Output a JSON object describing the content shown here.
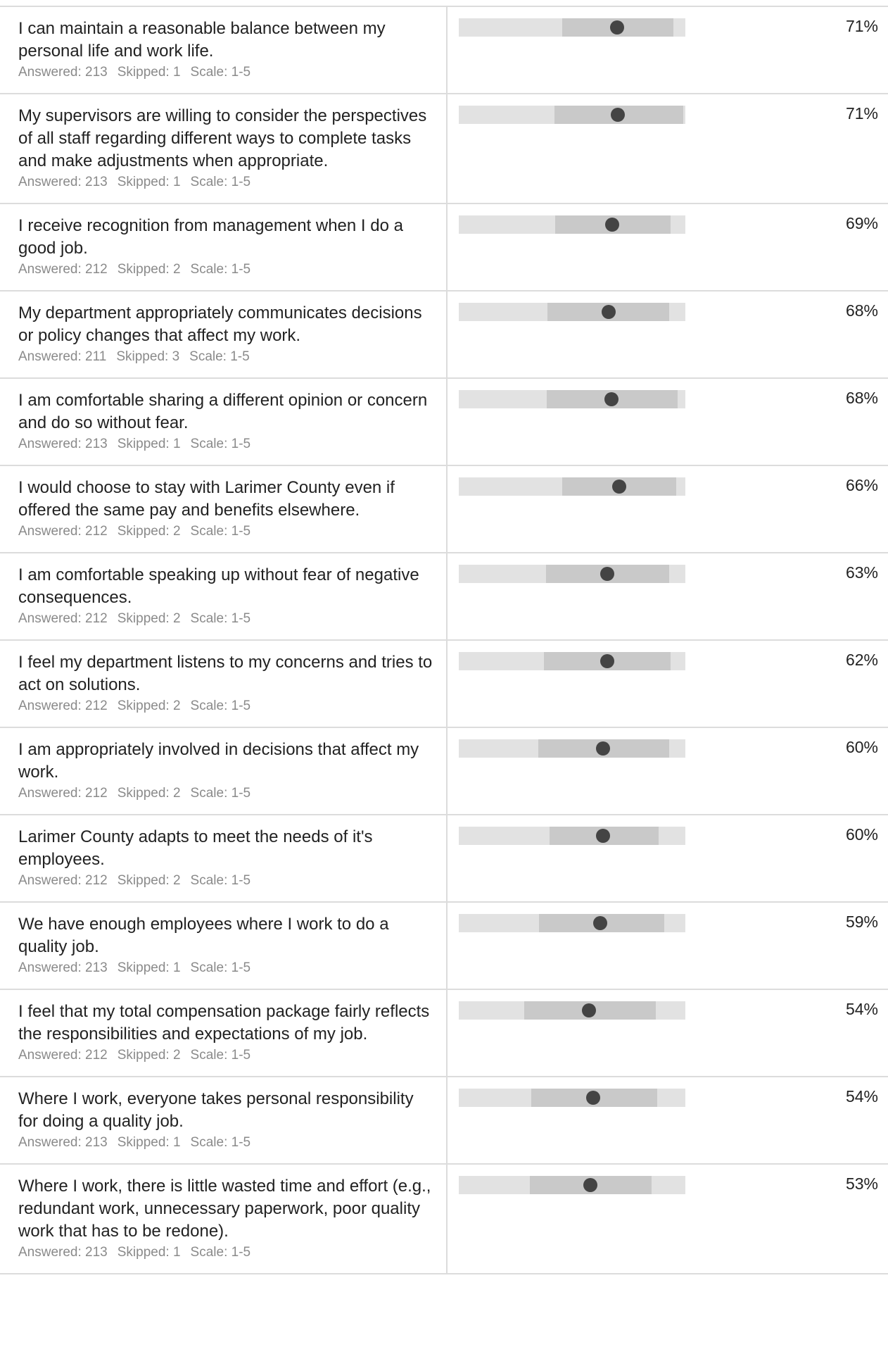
{
  "chart_data": {
    "type": "table",
    "scale_min": 1,
    "scale_max": 5,
    "rows": [
      {
        "question": "I can maintain a reasonable balance between my personal life and work life.",
        "answered": "Answered: 213",
        "skipped": "Skipped: 1",
        "scale": "Scale: 1-5",
        "range_low": 2.83,
        "range_high": 4.79,
        "mean": 3.79,
        "percent": "71%"
      },
      {
        "question": "My supervisors are willing to consider the perspectives of all staff regarding different ways to complete tasks and make adjustments when appropriate.",
        "answered": "Answered: 213",
        "skipped": "Skipped: 1",
        "scale": "Scale: 1-5",
        "range_low": 2.69,
        "range_high": 4.96,
        "mean": 3.81,
        "percent": "71%"
      },
      {
        "question": "I receive recognition from management when I do a good job.",
        "answered": "Answered: 212",
        "skipped": "Skipped: 2",
        "scale": "Scale: 1-5",
        "range_low": 2.7,
        "range_high": 4.74,
        "mean": 3.71,
        "percent": "69%"
      },
      {
        "question": "My department appropriately communicates decisions or policy changes that affect my work.",
        "answered": "Answered: 211",
        "skipped": "Skipped: 3",
        "scale": "Scale: 1-5",
        "range_low": 2.57,
        "range_high": 4.71,
        "mean": 3.64,
        "percent": "68%"
      },
      {
        "question": "I am comfortable sharing a different opinion or concern and do so without fear.",
        "answered": "Answered: 213",
        "skipped": "Skipped: 1",
        "scale": "Scale: 1-5",
        "range_low": 2.55,
        "range_high": 4.86,
        "mean": 3.7,
        "percent": "68%"
      },
      {
        "question": "I would choose to stay with Larimer County even if offered the same pay and benefits elsewhere.",
        "answered": "Answered: 212",
        "skipped": "Skipped: 2",
        "scale": "Scale: 1-5",
        "range_low": 2.83,
        "range_high": 4.84,
        "mean": 3.83,
        "percent": "66%"
      },
      {
        "question": "I am comfortable speaking up without fear of negative consequences.",
        "answered": "Answered: 212",
        "skipped": "Skipped: 2",
        "scale": "Scale: 1-5",
        "range_low": 2.54,
        "range_high": 4.71,
        "mean": 3.62,
        "percent": "63%"
      },
      {
        "question": "I feel my department listens to my concerns and tries to act on solutions.",
        "answered": "Answered: 212",
        "skipped": "Skipped: 2",
        "scale": "Scale: 1-5",
        "range_low": 2.5,
        "range_high": 4.74,
        "mean": 3.62,
        "percent": "62%"
      },
      {
        "question": "I am appropriately involved in decisions that affect my work.",
        "answered": "Answered: 212",
        "skipped": "Skipped: 2",
        "scale": "Scale: 1-5",
        "range_low": 2.4,
        "range_high": 4.71,
        "mean": 3.55,
        "percent": "60%"
      },
      {
        "question": "Larimer County adapts to meet the needs of it's employees.",
        "answered": "Answered: 212",
        "skipped": "Skipped: 2",
        "scale": "Scale: 1-5",
        "range_low": 2.6,
        "range_high": 4.53,
        "mean": 3.55,
        "percent": "60%"
      },
      {
        "question": "We have enough employees where I work to do a quality job.",
        "answered": "Answered: 213",
        "skipped": "Skipped: 1",
        "scale": "Scale: 1-5",
        "range_low": 2.41,
        "range_high": 4.63,
        "mean": 3.5,
        "percent": "59%"
      },
      {
        "question": "I feel that my total compensation package fairly reflects the responsibilities and expectations of my job.",
        "answered": "Answered: 212",
        "skipped": "Skipped: 2",
        "scale": "Scale: 1-5",
        "range_low": 2.15,
        "range_high": 4.48,
        "mean": 3.3,
        "percent": "54%"
      },
      {
        "question": "Where I work, everyone takes personal responsibility for doing a quality job.",
        "answered": "Answered: 213",
        "skipped": "Skipped: 1",
        "scale": "Scale: 1-5",
        "range_low": 2.28,
        "range_high": 4.5,
        "mean": 3.37,
        "percent": "54%"
      },
      {
        "question": "Where I work, there is little wasted time and effort (e.g., redundant work, unnecessary paperwork, poor quality work that has to be redone).",
        "answered": "Answered: 213",
        "skipped": "Skipped: 1",
        "scale": "Scale: 1-5",
        "range_low": 2.26,
        "range_high": 4.4,
        "mean": 3.32,
        "percent": "53%"
      }
    ]
  }
}
